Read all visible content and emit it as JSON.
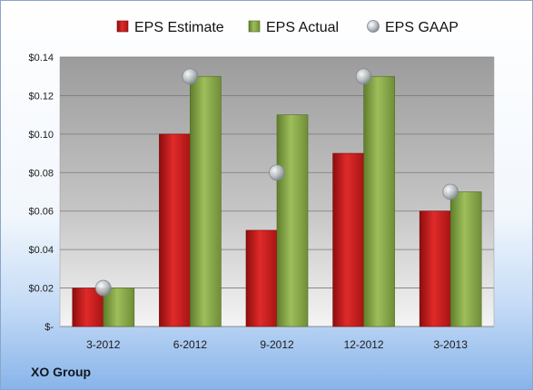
{
  "chart_data": {
    "type": "bar",
    "categories": [
      "3-2012",
      "6-2012",
      "9-2012",
      "12-2012",
      "3-2013"
    ],
    "series": [
      {
        "name": "EPS Estimate",
        "values": [
          0.02,
          0.1,
          0.05,
          0.09,
          0.06
        ],
        "color": "#d42424"
      },
      {
        "name": "EPS Actual",
        "values": [
          0.02,
          0.13,
          0.11,
          0.13,
          0.07
        ],
        "color": "#8aac4c"
      },
      {
        "name": "EPS GAAP",
        "values": [
          0.02,
          0.13,
          0.08,
          0.13,
          0.07
        ],
        "color": "#b4bcc4",
        "marker": "circle"
      }
    ],
    "y_ticks": [
      "$-",
      "$0.02",
      "$0.04",
      "$0.06",
      "$0.08",
      "$0.10",
      "$0.12",
      "$0.14"
    ],
    "ylim": [
      0,
      0.14
    ],
    "legend_position": "top",
    "grid": true
  },
  "footer": {
    "company": "XO Group"
  }
}
